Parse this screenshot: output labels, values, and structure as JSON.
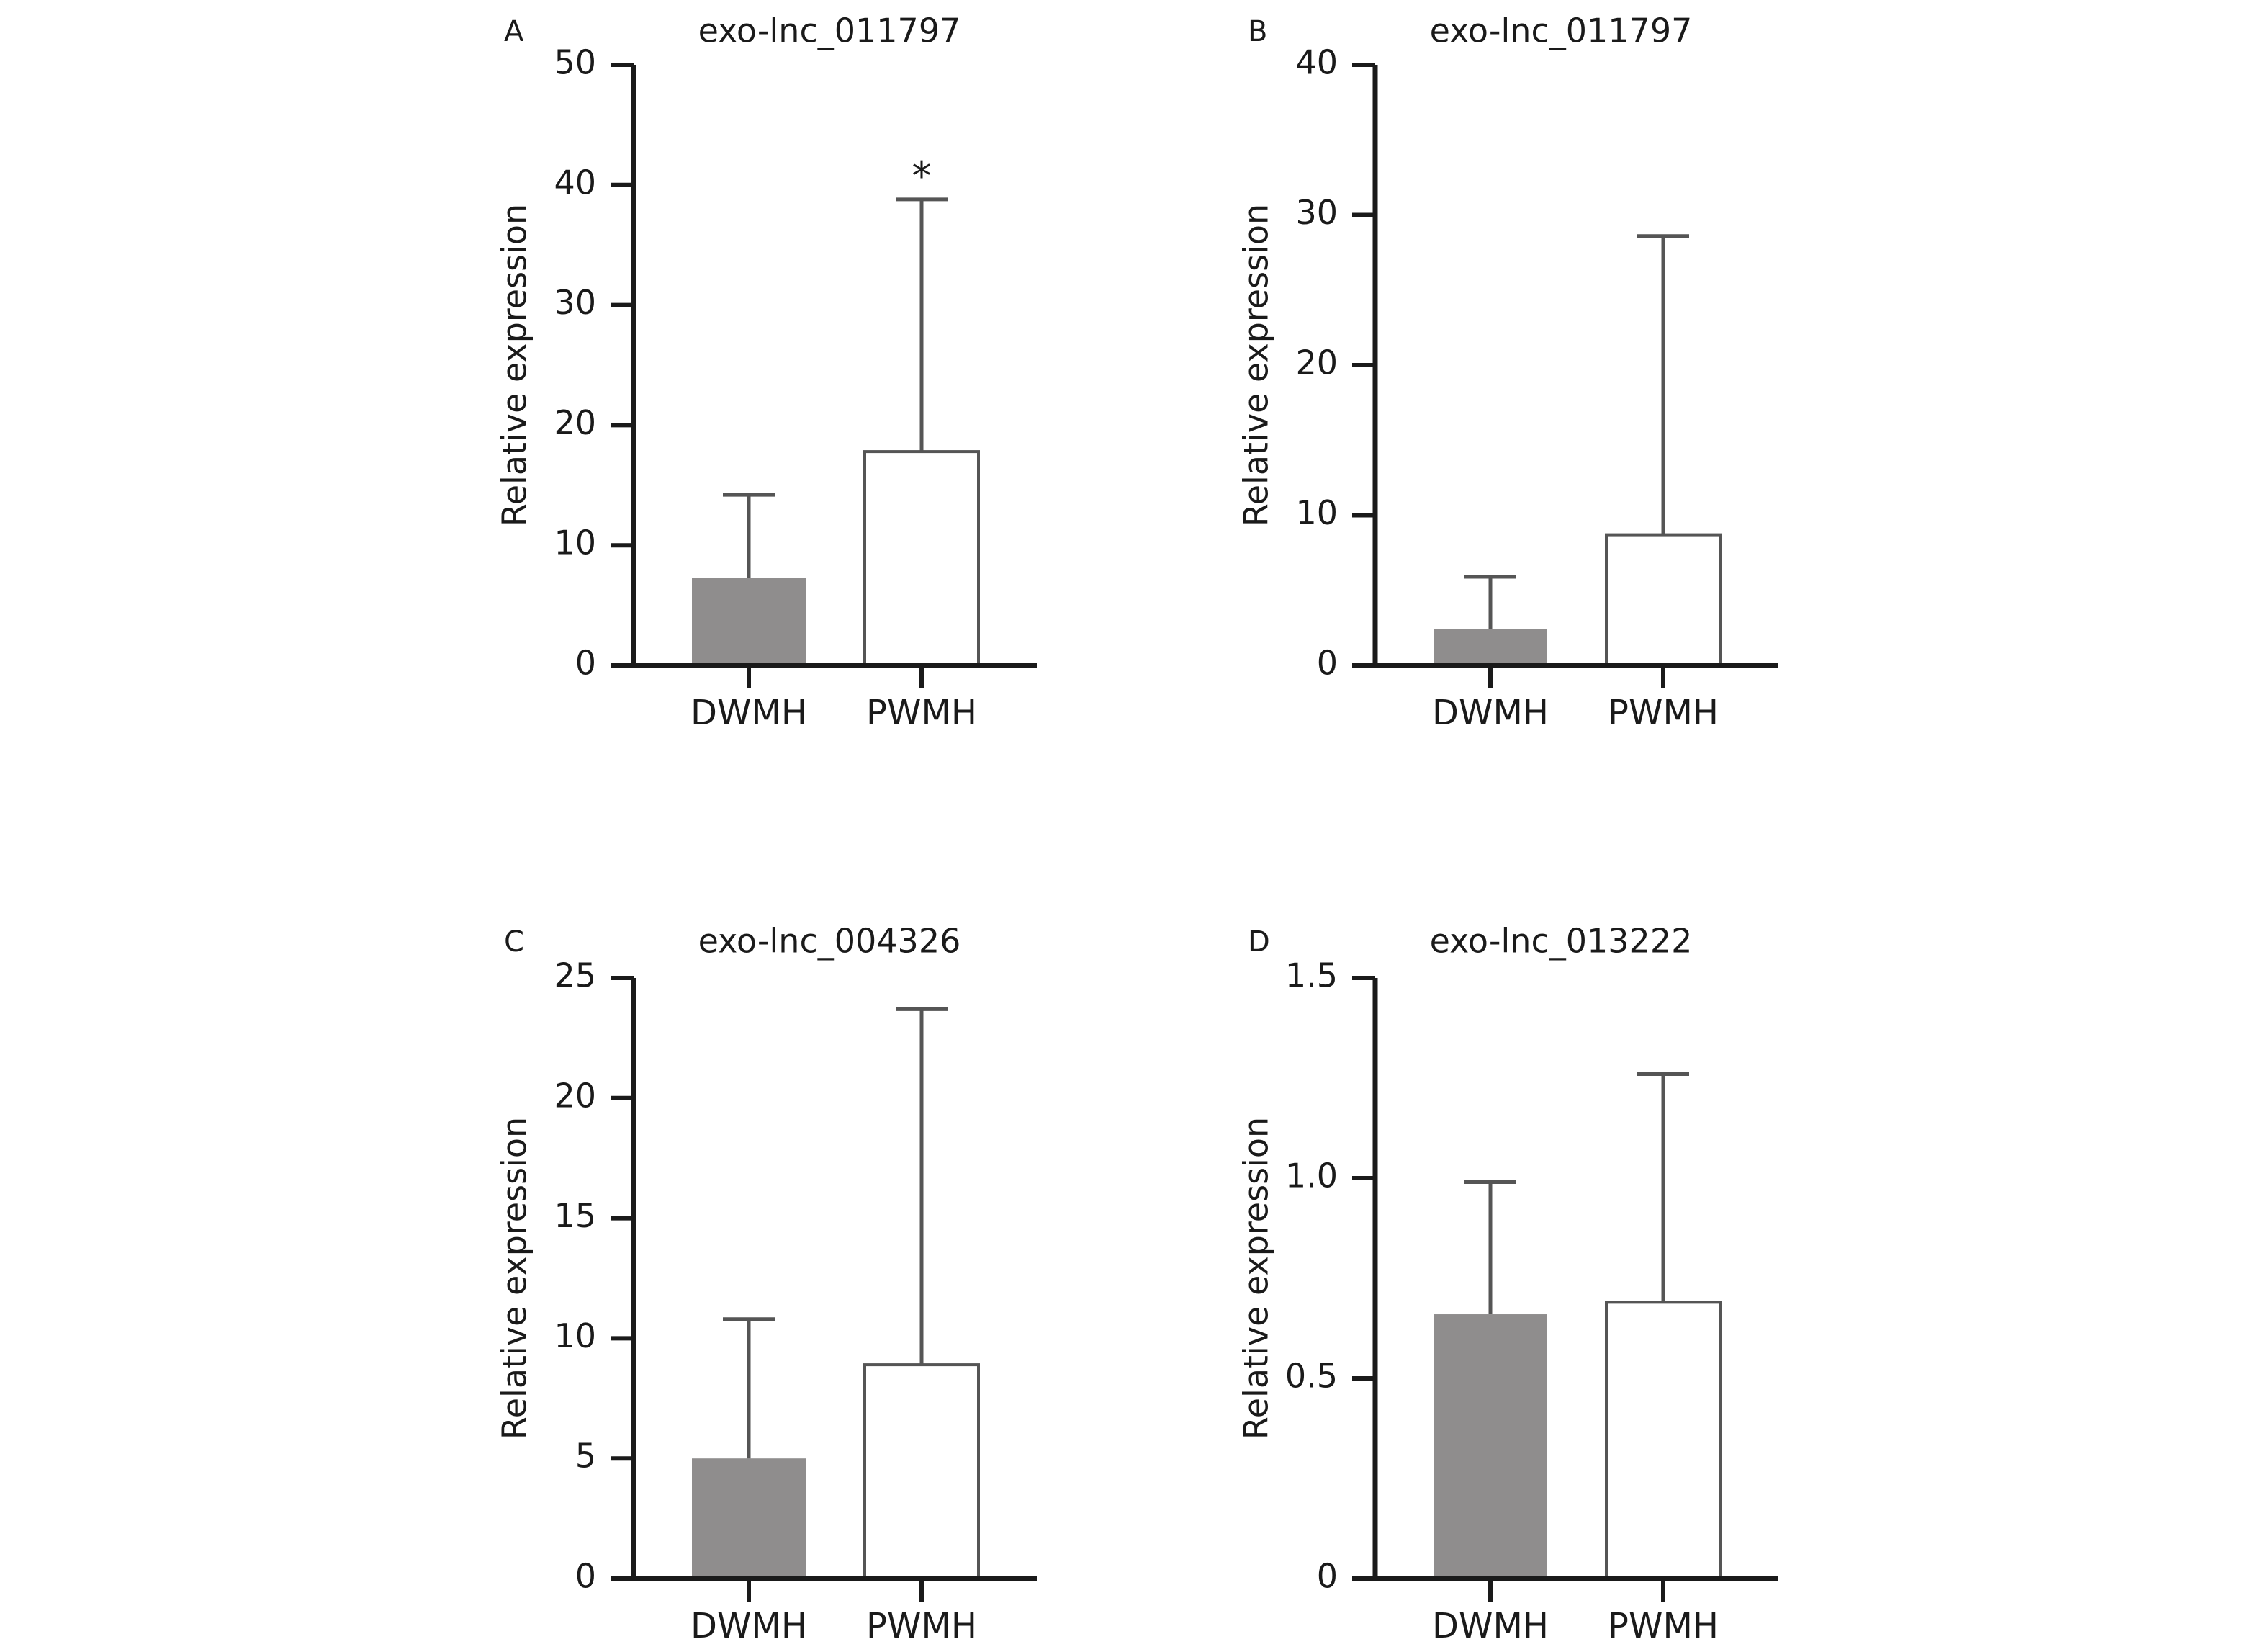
{
  "figure": {
    "background": "#ffffff",
    "axis_color": "#1a1a1a",
    "filled_color": "#8f8d8d",
    "open_color": "#ffffff",
    "error_bar_color": "#555555"
  },
  "chart_data": [
    {
      "panel": "A",
      "type": "bar",
      "title": "exo-lnc_011797",
      "ylabel": "Relative expression",
      "xlabel": "",
      "categories": [
        "DWMH",
        "PWMH"
      ],
      "values": [
        7.3,
        17.8
      ],
      "error_upper": [
        14.2,
        38.8
      ],
      "bar_fill": [
        "filled",
        "open"
      ],
      "ylim": [
        0,
        50
      ],
      "yticks": [
        0,
        10,
        20,
        30,
        40,
        50
      ],
      "ytick_labels": [
        "0",
        "10",
        "20",
        "30",
        "40",
        "50"
      ],
      "annotations": [
        {
          "category": "PWMH",
          "text": "*"
        }
      ],
      "grid": false,
      "legend": "none"
    },
    {
      "panel": "B",
      "type": "bar",
      "title": "exo-lnc_011797",
      "ylabel": "Relative expression",
      "xlabel": "",
      "categories": [
        "DWMH",
        "PWMH"
      ],
      "values": [
        2.4,
        8.7
      ],
      "error_upper": [
        5.9,
        28.6
      ],
      "bar_fill": [
        "filled",
        "open"
      ],
      "ylim": [
        0,
        40
      ],
      "yticks": [
        0,
        10,
        20,
        30,
        40
      ],
      "ytick_labels": [
        "0",
        "10",
        "20",
        "30",
        "40"
      ],
      "annotations": [],
      "grid": false,
      "legend": "none"
    },
    {
      "panel": "C",
      "type": "bar",
      "title": "exo-lnc_004326",
      "ylabel": "Relative expression",
      "xlabel": "",
      "categories": [
        "DWMH",
        "PWMH"
      ],
      "values": [
        5.0,
        8.9
      ],
      "error_upper": [
        10.8,
        23.7
      ],
      "bar_fill": [
        "filled",
        "open"
      ],
      "ylim": [
        0,
        25
      ],
      "yticks": [
        0,
        5,
        10,
        15,
        20,
        25
      ],
      "ytick_labels": [
        "0",
        "5",
        "10",
        "15",
        "20",
        "25"
      ],
      "annotations": [],
      "grid": false,
      "legend": "none"
    },
    {
      "panel": "D",
      "type": "bar",
      "title": "exo-lnc_013222",
      "ylabel": "Relative expression",
      "xlabel": "",
      "categories": [
        "DWMH",
        "PWMH"
      ],
      "values": [
        0.66,
        0.69
      ],
      "error_upper": [
        0.99,
        1.26
      ],
      "bar_fill": [
        "filled",
        "open"
      ],
      "ylim": [
        0,
        1.5
      ],
      "yticks": [
        0,
        0.5,
        1.0,
        1.5
      ],
      "ytick_labels": [
        "0",
        "0.5",
        "1.0",
        "1.5"
      ],
      "annotations": [],
      "grid": false,
      "legend": "none"
    }
  ]
}
